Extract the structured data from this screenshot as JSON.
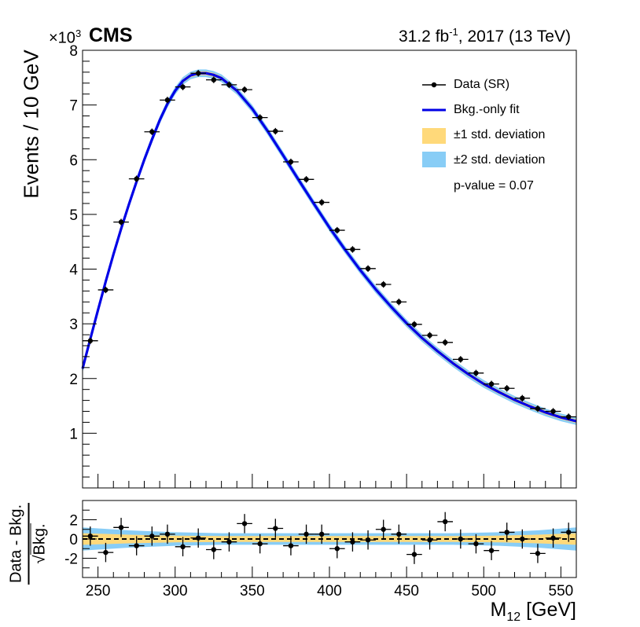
{
  "header": {
    "experiment": "CMS",
    "exponent_prefix": "×10",
    "exponent_power": "3",
    "lumi_value": "31.2 fb",
    "lumi_power": "-1",
    "lumi_rest": ", 2017 (13 TeV)"
  },
  "colors": {
    "fit": "#0000e6",
    "band_1sigma": "#ffd97a",
    "band_2sigma": "#88cdf6",
    "data": "#000000"
  },
  "legend": {
    "data": "Data (SR)",
    "fit": "Bkg.-only fit",
    "band1": "±1 std. deviation",
    "band2": "±2 std. deviation",
    "pvalue": "p-value = 0.07"
  },
  "chart_data": [
    {
      "type": "scatter",
      "panel": "main",
      "ylabel": "Events / 10 GeV",
      "xlim": [
        240,
        560
      ],
      "ylim": [
        0,
        8
      ],
      "y_unit_scale": "×10^3",
      "xticks": [
        250,
        300,
        350,
        400,
        450,
        500,
        550
      ],
      "yticks": [
        1,
        2,
        3,
        4,
        5,
        6,
        7,
        8
      ],
      "legend_position": "top-right",
      "bin_width": 10,
      "series": [
        {
          "name": "Data (SR)",
          "x": [
            245,
            255,
            265,
            275,
            285,
            295,
            305,
            315,
            325,
            335,
            345,
            355,
            365,
            375,
            385,
            395,
            405,
            415,
            425,
            435,
            445,
            455,
            465,
            475,
            485,
            495,
            505,
            515,
            525,
            535,
            545,
            555
          ],
          "y": [
            2.69,
            3.62,
            4.86,
            5.65,
            6.51,
            7.09,
            7.33,
            7.58,
            7.46,
            7.37,
            7.28,
            6.77,
            6.52,
            5.96,
            5.64,
            5.22,
            4.71,
            4.36,
            4.01,
            3.72,
            3.4,
            2.99,
            2.79,
            2.66,
            2.35,
            2.1,
            1.9,
            1.82,
            1.64,
            1.45,
            1.4,
            1.3
          ],
          "yerr": 0.06
        },
        {
          "name": "Bkg.-only fit",
          "x": [
            240,
            245,
            250,
            255,
            260,
            265,
            270,
            275,
            280,
            285,
            290,
            295,
            300,
            305,
            310,
            315,
            320,
            325,
            330,
            340,
            350,
            360,
            370,
            380,
            390,
            400,
            410,
            420,
            430,
            440,
            450,
            460,
            470,
            480,
            490,
            500,
            510,
            520,
            530,
            540,
            550,
            560
          ],
          "y": [
            2.18,
            2.72,
            3.25,
            3.77,
            4.27,
            4.74,
            5.18,
            5.6,
            6.0,
            6.37,
            6.72,
            7.02,
            7.26,
            7.44,
            7.54,
            7.58,
            7.58,
            7.55,
            7.49,
            7.26,
            6.93,
            6.52,
            6.08,
            5.63,
            5.19,
            4.76,
            4.36,
            3.98,
            3.63,
            3.31,
            3.01,
            2.74,
            2.5,
            2.28,
            2.08,
            1.9,
            1.75,
            1.61,
            1.49,
            1.38,
            1.29,
            1.22
          ]
        }
      ]
    },
    {
      "type": "scatter",
      "panel": "ratio",
      "ylabel_numerator": "Data - Bkg.",
      "ylabel_denominator": "Bkg.",
      "xlabel": "M",
      "xlabel_sub": "12",
      "xlabel_unit": " [GeV]",
      "xlim": [
        240,
        560
      ],
      "ylim": [
        -4,
        4
      ],
      "yticks": [
        -2,
        0,
        2
      ],
      "xticks": [
        250,
        300,
        350,
        400,
        450,
        500,
        550
      ],
      "series": [
        {
          "name": "Data (SR)",
          "x": [
            245,
            255,
            265,
            275,
            285,
            295,
            305,
            315,
            325,
            335,
            345,
            355,
            365,
            375,
            385,
            395,
            405,
            415,
            425,
            435,
            445,
            455,
            465,
            475,
            485,
            495,
            505,
            515,
            525,
            535,
            545,
            555
          ],
          "y": [
            0.3,
            -1.4,
            1.2,
            -0.7,
            0.3,
            0.5,
            -0.8,
            0.1,
            -1.1,
            -0.3,
            1.6,
            -0.5,
            1.1,
            -0.7,
            0.5,
            0.5,
            -1.0,
            -0.3,
            -0.1,
            1.0,
            0.5,
            -1.6,
            -0.1,
            1.8,
            0.0,
            -0.5,
            -1.2,
            0.7,
            0.0,
            -1.5,
            0.1,
            0.7
          ],
          "yerr": 1.0
        }
      ],
      "band_1sigma_halfwidth": [
        0.6,
        0.45,
        0.35,
        0.3,
        0.3,
        0.3,
        0.3,
        0.3,
        0.35,
        0.45,
        0.6
      ],
      "band_2sigma_halfwidth": [
        1.2,
        0.9,
        0.7,
        0.6,
        0.6,
        0.6,
        0.6,
        0.6,
        0.7,
        0.9,
        1.2
      ],
      "band_x": [
        240,
        270,
        300,
        330,
        360,
        400,
        440,
        480,
        510,
        535,
        560
      ]
    }
  ]
}
